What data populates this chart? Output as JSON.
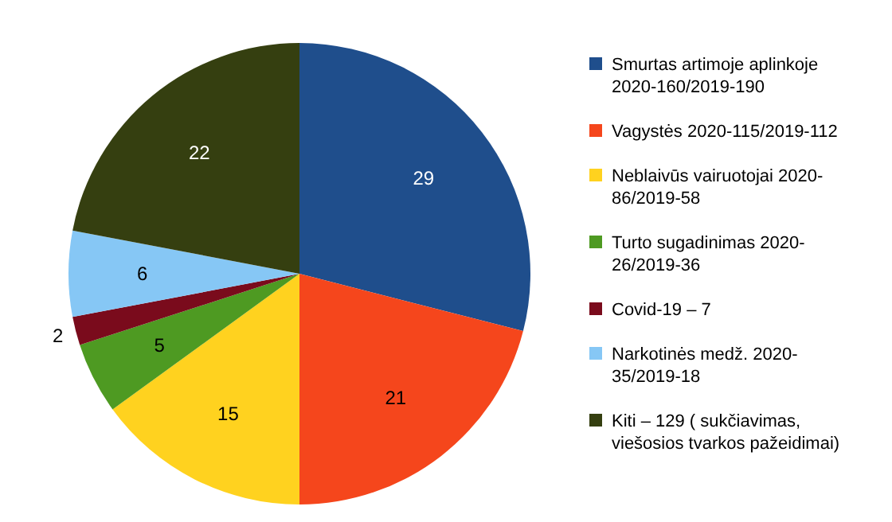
{
  "chart_data": {
    "type": "pie",
    "data_labels": true,
    "legend": "right",
    "categories": [
      "Smurtas artimoje aplinkoje 2020-160/2019-190",
      "Vagystės 2020-115/2019-112",
      "Neblaivūs vairuotojai 2020-86/2019-58",
      "Turto sugadinimas 2020-26/2019-36",
      "Covid-19 – 7",
      "Narkotinės medž. 2020-35/2019-18",
      "Kiti – 129 ( sukčiavimas, viešosios tvarkos pažeidimai)"
    ],
    "values": [
      29,
      21,
      15,
      5,
      2,
      6,
      22
    ],
    "colors": [
      "#1f4e8c",
      "#f5461c",
      "#ffd21f",
      "#4e9a22",
      "#7a0b1c",
      "#86c7f5",
      "#353f10"
    ]
  }
}
